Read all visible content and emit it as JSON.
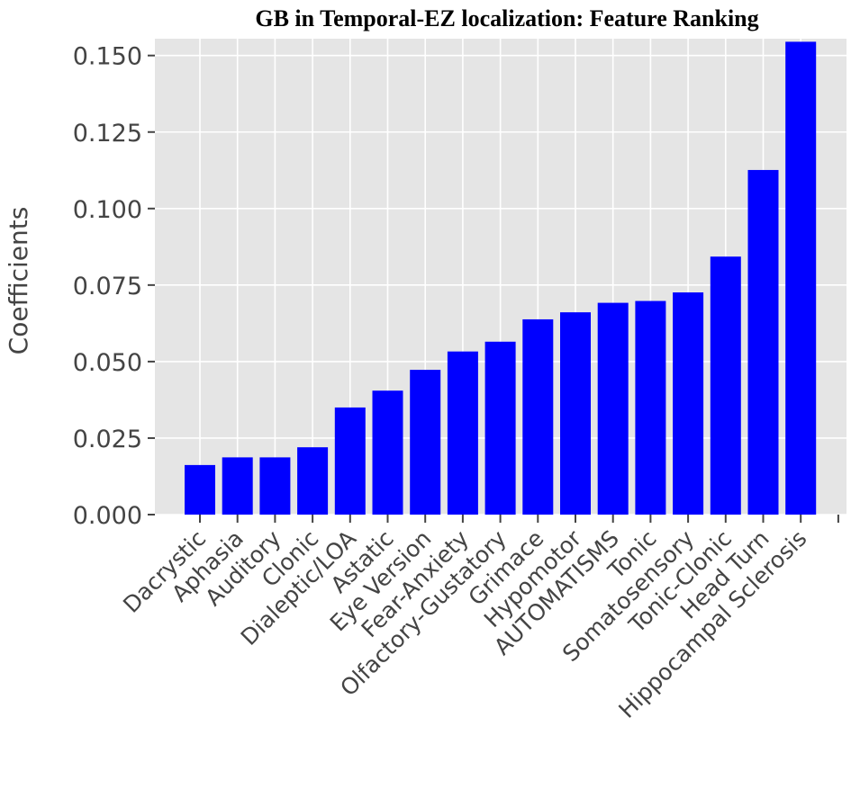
{
  "chart_data": {
    "type": "bar",
    "title": "GB in Temporal-EZ localization: Feature Ranking",
    "xlabel": "",
    "ylabel": "Coefficients",
    "categories": [
      "Dacrystic",
      "Aphasia",
      "Auditory",
      "Clonic",
      "Dialeptic/LOA",
      "Astatic",
      "Eye Version",
      "Fear-Anxiety",
      "Olfactory-Gustatory",
      "Grimace",
      "Hypomotor",
      "AUTOMATISMS",
      "Tonic",
      "Somatosensory",
      "Tonic-Clonic",
      "Head Turn",
      "Hippocampal Sclerosis"
    ],
    "values": [
      0.0162,
      0.0187,
      0.0187,
      0.022,
      0.035,
      0.0405,
      0.0473,
      0.0533,
      0.0565,
      0.0638,
      0.0661,
      0.0692,
      0.0698,
      0.0726,
      0.0843,
      0.1126,
      0.1545
    ],
    "yticks": [
      "0.000",
      "0.025",
      "0.050",
      "0.075",
      "0.100",
      "0.125",
      "0.150"
    ],
    "ylim": [
      0,
      0.1555
    ],
    "grid": true,
    "colors": {
      "bar": "#0000ff",
      "background": "#e5e5e5",
      "grid": "#ffffff",
      "tick": "#444444"
    }
  }
}
